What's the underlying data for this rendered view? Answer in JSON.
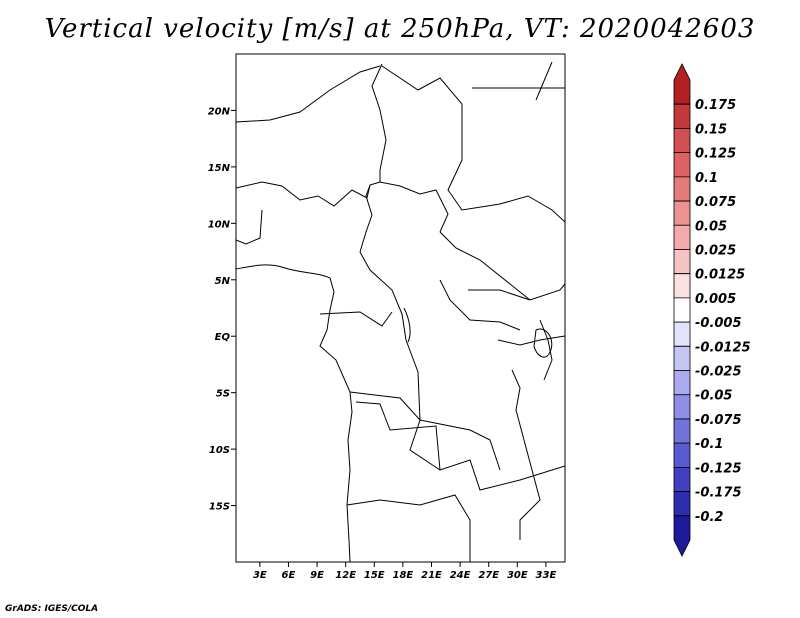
{
  "title": "Vertical velocity [m/s] at 250hPa, VT: 2020042603",
  "credit": "GrADS: IGES/COLA",
  "map": {
    "variable": "Vertical velocity",
    "units": "m/s",
    "level": "250hPa",
    "valid_time": "2020042603",
    "lon_ticks": [
      "3E",
      "6E",
      "9E",
      "12E",
      "15E",
      "18E",
      "21E",
      "24E",
      "27E",
      "30E",
      "33E"
    ],
    "lat_ticks": [
      "20N",
      "15N",
      "10N",
      "5N",
      "EQ",
      "5S",
      "10S",
      "15S"
    ],
    "lon_range": [
      0.5,
      35
    ],
    "lat_range": [
      -20,
      25
    ]
  },
  "colorbar": {
    "labels": [
      "0.175",
      "0.15",
      "0.125",
      "0.1",
      "0.075",
      "0.05",
      "0.025",
      "0.0125",
      "0.005",
      "-0.005",
      "-0.0125",
      "-0.025",
      "-0.05",
      "-0.075",
      "-0.1",
      "-0.125",
      "-0.175",
      "-0.2"
    ],
    "colors": [
      "#b22121",
      "#c33a3a",
      "#d25050",
      "#dd6262",
      "#e47a7a",
      "#ec9292",
      "#f2aaaa",
      "#f6c4c4",
      "#fae0e0",
      "#ffffff",
      "#e2e2fb",
      "#c6c6f5",
      "#aaaaee",
      "#8e8ee6",
      "#7272dc",
      "#5a5ad0",
      "#4040c0",
      "#2d2daf",
      "#1c1c9a"
    ]
  }
}
